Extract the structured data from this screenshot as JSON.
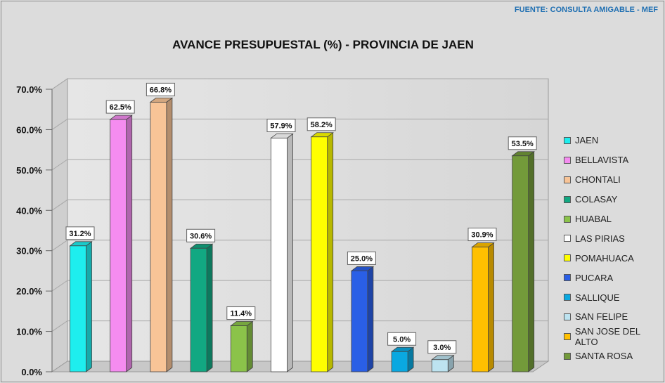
{
  "source_note": "FUENTE: CONSULTA AMIGABLE - MEF",
  "chart_data": {
    "type": "bar",
    "title": "AVANCE PRESUPUESTAL  (%) - PROVINCIA DE JAEN",
    "xlabel": "",
    "ylabel": "",
    "ylim": [
      0,
      70
    ],
    "yticks": [
      "0.0%",
      "10.0%",
      "20.0%",
      "30.0%",
      "40.0%",
      "50.0%",
      "60.0%",
      "70.0%"
    ],
    "grid": true,
    "legend_position": "right",
    "categories": [
      "JAEN",
      "BELLAVISTA",
      "CHONTALI",
      "COLASAY",
      "HUABAL",
      "LAS PIRIAS",
      "POMAHUACA",
      "PUCARA",
      "SALLIQUE",
      "SAN FELIPE",
      "SAN JOSE DEL ALTO",
      "SANTA ROSA"
    ],
    "values": [
      31.2,
      62.5,
      66.8,
      30.6,
      11.4,
      57.9,
      58.2,
      25.0,
      5.0,
      3.0,
      30.9,
      53.5
    ],
    "labels": [
      "31.2%",
      "62.5%",
      "66.8%",
      "30.6%",
      "11.4%",
      "57.9%",
      "58.2%",
      "25.0%",
      "5.0%",
      "3.0%",
      "30.9%",
      "53.5%"
    ],
    "colors": [
      "#1EEEEE",
      "#F58CF0",
      "#F8C497",
      "#12A882",
      "#8BC34A",
      "#FFFFFF",
      "#FFFF00",
      "#2A5FE6",
      "#0AA8E0",
      "#BDE3F0",
      "#FFC000",
      "#739A3A"
    ]
  }
}
